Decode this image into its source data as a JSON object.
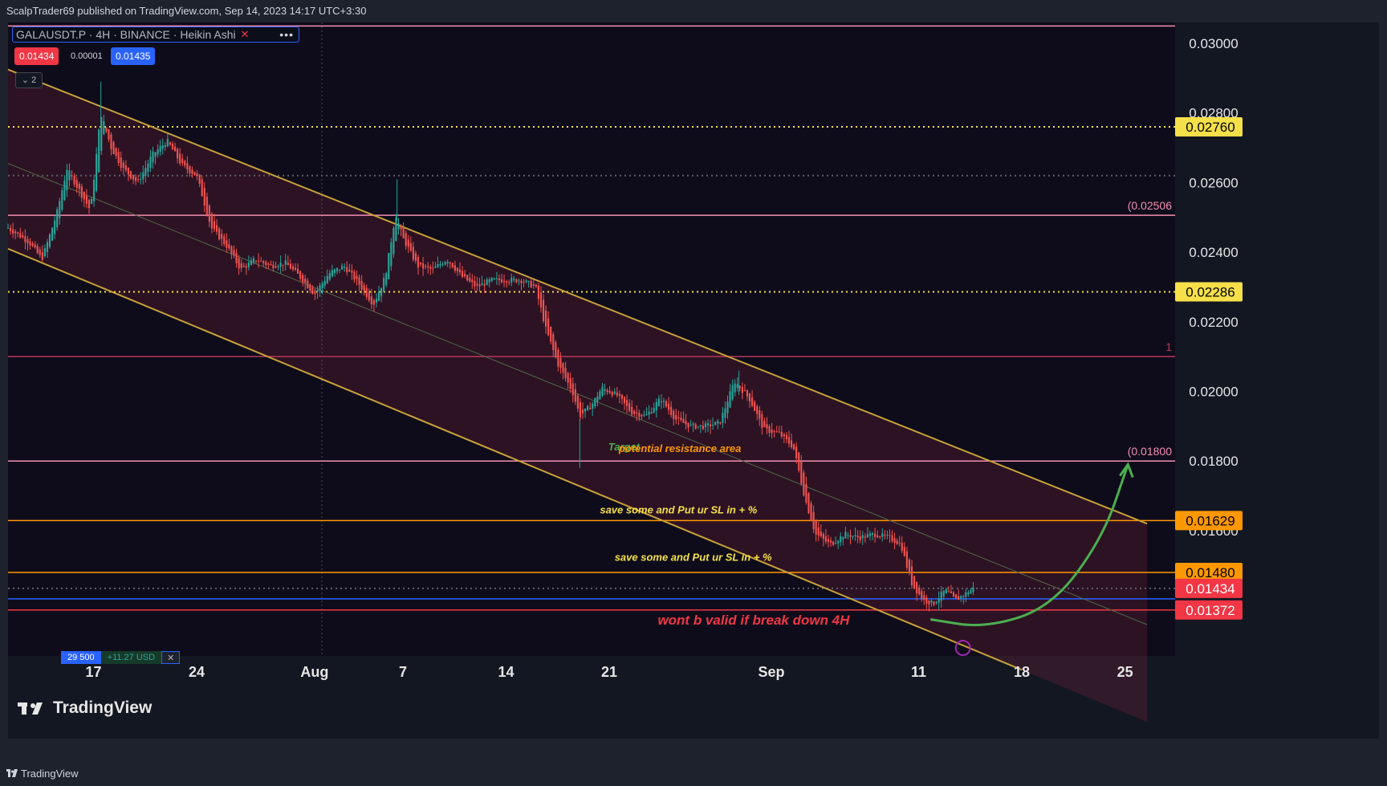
{
  "header": {
    "published_text": "ScalpTrader69 published on TradingView.com, Sep 14, 2023 14:17 UTC+3:30"
  },
  "legend": {
    "symbol_text": "GALAUSDT.P · 4H · BINANCE · Heikin Ashi",
    "bid": "0.01434",
    "spread": "0.00001",
    "ask": "0.01435",
    "collapsed_count": "2",
    "more_icon": "more-dots-icon",
    "close_icon": "close-icon"
  },
  "position": {
    "qty": "29 500",
    "pnl": "+11.27 USD",
    "close_icon": "close-icon"
  },
  "branding": {
    "logo_text": "TradingView",
    "footer_text": "TradingView"
  },
  "colors": {
    "background": "#0e0c1a",
    "bull": "#26a69a",
    "bear": "#ef5350",
    "channel": "#c8a13a",
    "level_pink": "#f48fb1",
    "level_yellow": "#f5e04a",
    "level_orange": "#ff9800",
    "arrow_green": "#4caf50"
  },
  "chart_data": {
    "type": "candlestick",
    "chart_style": "Heikin Ashi",
    "timeframe": "4H",
    "y_scale": "linear",
    "ylim": [
      0.0124,
      0.0306
    ],
    "y_ticks": [
      "0.03000",
      "0.02800",
      "0.02600",
      "0.02400",
      "0.02200",
      "0.02000",
      "0.01800",
      "0.01600"
    ],
    "x_ticks": [
      {
        "label": "17",
        "day": 17
      },
      {
        "label": "24",
        "day": 24
      },
      {
        "label": "Aug",
        "day": 32
      },
      {
        "label": "7",
        "day": 38
      },
      {
        "label": "14",
        "day": 45
      },
      {
        "label": "21",
        "day": 52
      },
      {
        "label": "Sep",
        "day": 63
      },
      {
        "label": "11",
        "day": 73
      },
      {
        "label": "18",
        "day": 80
      },
      {
        "label": "25",
        "day": 87
      }
    ],
    "xlim_days": [
      11.2,
      90.4
    ],
    "price_path": [
      [
        11.2,
        0.0247
      ],
      [
        12.6,
        0.0243
      ],
      [
        13.5,
        0.0238
      ],
      [
        14.5,
        0.0251
      ],
      [
        15.2,
        0.0264
      ],
      [
        16.0,
        0.0258
      ],
      [
        16.8,
        0.0252
      ],
      [
        17.5,
        0.028
      ],
      [
        18.2,
        0.027
      ],
      [
        19.0,
        0.0264
      ],
      [
        20.0,
        0.026
      ],
      [
        21.0,
        0.0268
      ],
      [
        22.0,
        0.0272
      ],
      [
        23.0,
        0.0265
      ],
      [
        24.0,
        0.0262
      ],
      [
        25.0,
        0.0247
      ],
      [
        26.0,
        0.0242
      ],
      [
        27.0,
        0.0235
      ],
      [
        28.0,
        0.0238
      ],
      [
        29.0,
        0.0236
      ],
      [
        30.0,
        0.0237
      ],
      [
        31.0,
        0.0233
      ],
      [
        32.0,
        0.0228
      ],
      [
        33.0,
        0.0234
      ],
      [
        34.0,
        0.0236
      ],
      [
        35.0,
        0.0231
      ],
      [
        36.0,
        0.0225
      ],
      [
        36.8,
        0.0233
      ],
      [
        37.5,
        0.0251
      ],
      [
        38.0,
        0.0244
      ],
      [
        39.0,
        0.0236
      ],
      [
        40.0,
        0.0235
      ],
      [
        41.0,
        0.0238
      ],
      [
        42.0,
        0.0233
      ],
      [
        43.0,
        0.023
      ],
      [
        44.0,
        0.0232
      ],
      [
        45.0,
        0.0232
      ],
      [
        46.0,
        0.0232
      ],
      [
        47.0,
        0.023
      ],
      [
        47.7,
        0.0218
      ],
      [
        48.5,
        0.0208
      ],
      [
        49.5,
        0.02
      ],
      [
        50.0,
        0.0193
      ],
      [
        50.8,
        0.0196
      ],
      [
        51.5,
        0.0201
      ],
      [
        52.5,
        0.0199
      ],
      [
        53.5,
        0.0194
      ],
      [
        54.5,
        0.0193
      ],
      [
        55.5,
        0.0198
      ],
      [
        56.5,
        0.0192
      ],
      [
        57.5,
        0.019
      ],
      [
        58.5,
        0.019
      ],
      [
        59.5,
        0.0191
      ],
      [
        60.5,
        0.0203
      ],
      [
        61.5,
        0.0198
      ],
      [
        62.5,
        0.0189
      ],
      [
        63.5,
        0.0188
      ],
      [
        64.5,
        0.0184
      ],
      [
        65.3,
        0.0169
      ],
      [
        66.0,
        0.0159
      ],
      [
        67.0,
        0.0156
      ],
      [
        68.0,
        0.0159
      ],
      [
        69.0,
        0.0158
      ],
      [
        70.0,
        0.0159
      ],
      [
        71.0,
        0.0158
      ],
      [
        71.8,
        0.0156
      ],
      [
        72.5,
        0.0145
      ],
      [
        73.3,
        0.014
      ],
      [
        74.0,
        0.0139
      ],
      [
        74.8,
        0.0143
      ],
      [
        75.5,
        0.014
      ],
      [
        76.2,
        0.0142
      ],
      [
        76.7,
        0.01434
      ]
    ],
    "horizontal_levels": [
      {
        "price": 0.0305,
        "style": "solid",
        "color": "#f48fb1"
      },
      {
        "price": 0.0276,
        "style": "dotted",
        "color": "#f5e04a",
        "label": "0.02760",
        "label_color": "#f5e04a"
      },
      {
        "price": 0.0262,
        "style": "dotted",
        "color": "#5d606b"
      },
      {
        "price": 0.02506,
        "style": "solid",
        "color": "#f48fb1",
        "text": "(0.02506"
      },
      {
        "price": 0.02286,
        "style": "dotted",
        "color": "#f5e04a",
        "label": "0.02286",
        "label_color": "#f5e04a"
      },
      {
        "price": 0.021,
        "style": "solid",
        "color": "#b5375a",
        "text": "1"
      },
      {
        "price": 0.018,
        "style": "solid",
        "color": "#f48fb1",
        "text": "(0.01800"
      },
      {
        "price": 0.01629,
        "style": "solid",
        "color": "#ff9800",
        "label": "0.01629",
        "label_color": "#ff9800"
      },
      {
        "price": 0.0148,
        "style": "solid",
        "color": "#ff9800",
        "label": "0.01480",
        "label_color": "#ff9800"
      },
      {
        "price": 0.01434,
        "style": "dotted",
        "color": "#5d606b",
        "label": "0.01434",
        "label_color": "#f23645"
      },
      {
        "price": 0.01372,
        "style": "solid",
        "color": "#f23645",
        "label": "0.01372",
        "label_color": "#f23645"
      },
      {
        "price": 0.01404,
        "style": "solid",
        "color": "#2962ff"
      }
    ],
    "channel": {
      "upper": [
        [
          11.2,
          0.02925
        ],
        [
          88.5,
          0.0162
        ]
      ],
      "middle": [
        [
          11.2,
          0.02655
        ],
        [
          88.5,
          0.0133
        ]
      ],
      "lower": [
        [
          11.2,
          0.0241
        ],
        [
          80.0,
          0.012
        ]
      ]
    },
    "vertical_marker_day": 32.5,
    "annotations": [
      {
        "text": "Target",
        "day": 53.0,
        "price": 0.0183,
        "color": "#4caf50"
      },
      {
        "text": "potential resistance area",
        "day": 56.8,
        "price": 0.01826,
        "color": "#ff9800"
      },
      {
        "text": "save some and Put ur SL in + %",
        "day": 56.7,
        "price": 0.0165,
        "color": "#f5e04a"
      },
      {
        "text": "save some and Put ur SL in + %",
        "day": 57.7,
        "price": 0.01513,
        "color": "#f5e04a"
      },
      {
        "text": "wont b valid if break down 4H",
        "day": 61.8,
        "price": 0.0133,
        "color": "#f23645"
      }
    ],
    "projection_arrow": [
      [
        73.8,
        0.01345
      ],
      [
        77.5,
        0.0132
      ],
      [
        82.0,
        0.0138
      ],
      [
        85.5,
        0.0158
      ],
      [
        87.2,
        0.0179
      ]
    ]
  }
}
